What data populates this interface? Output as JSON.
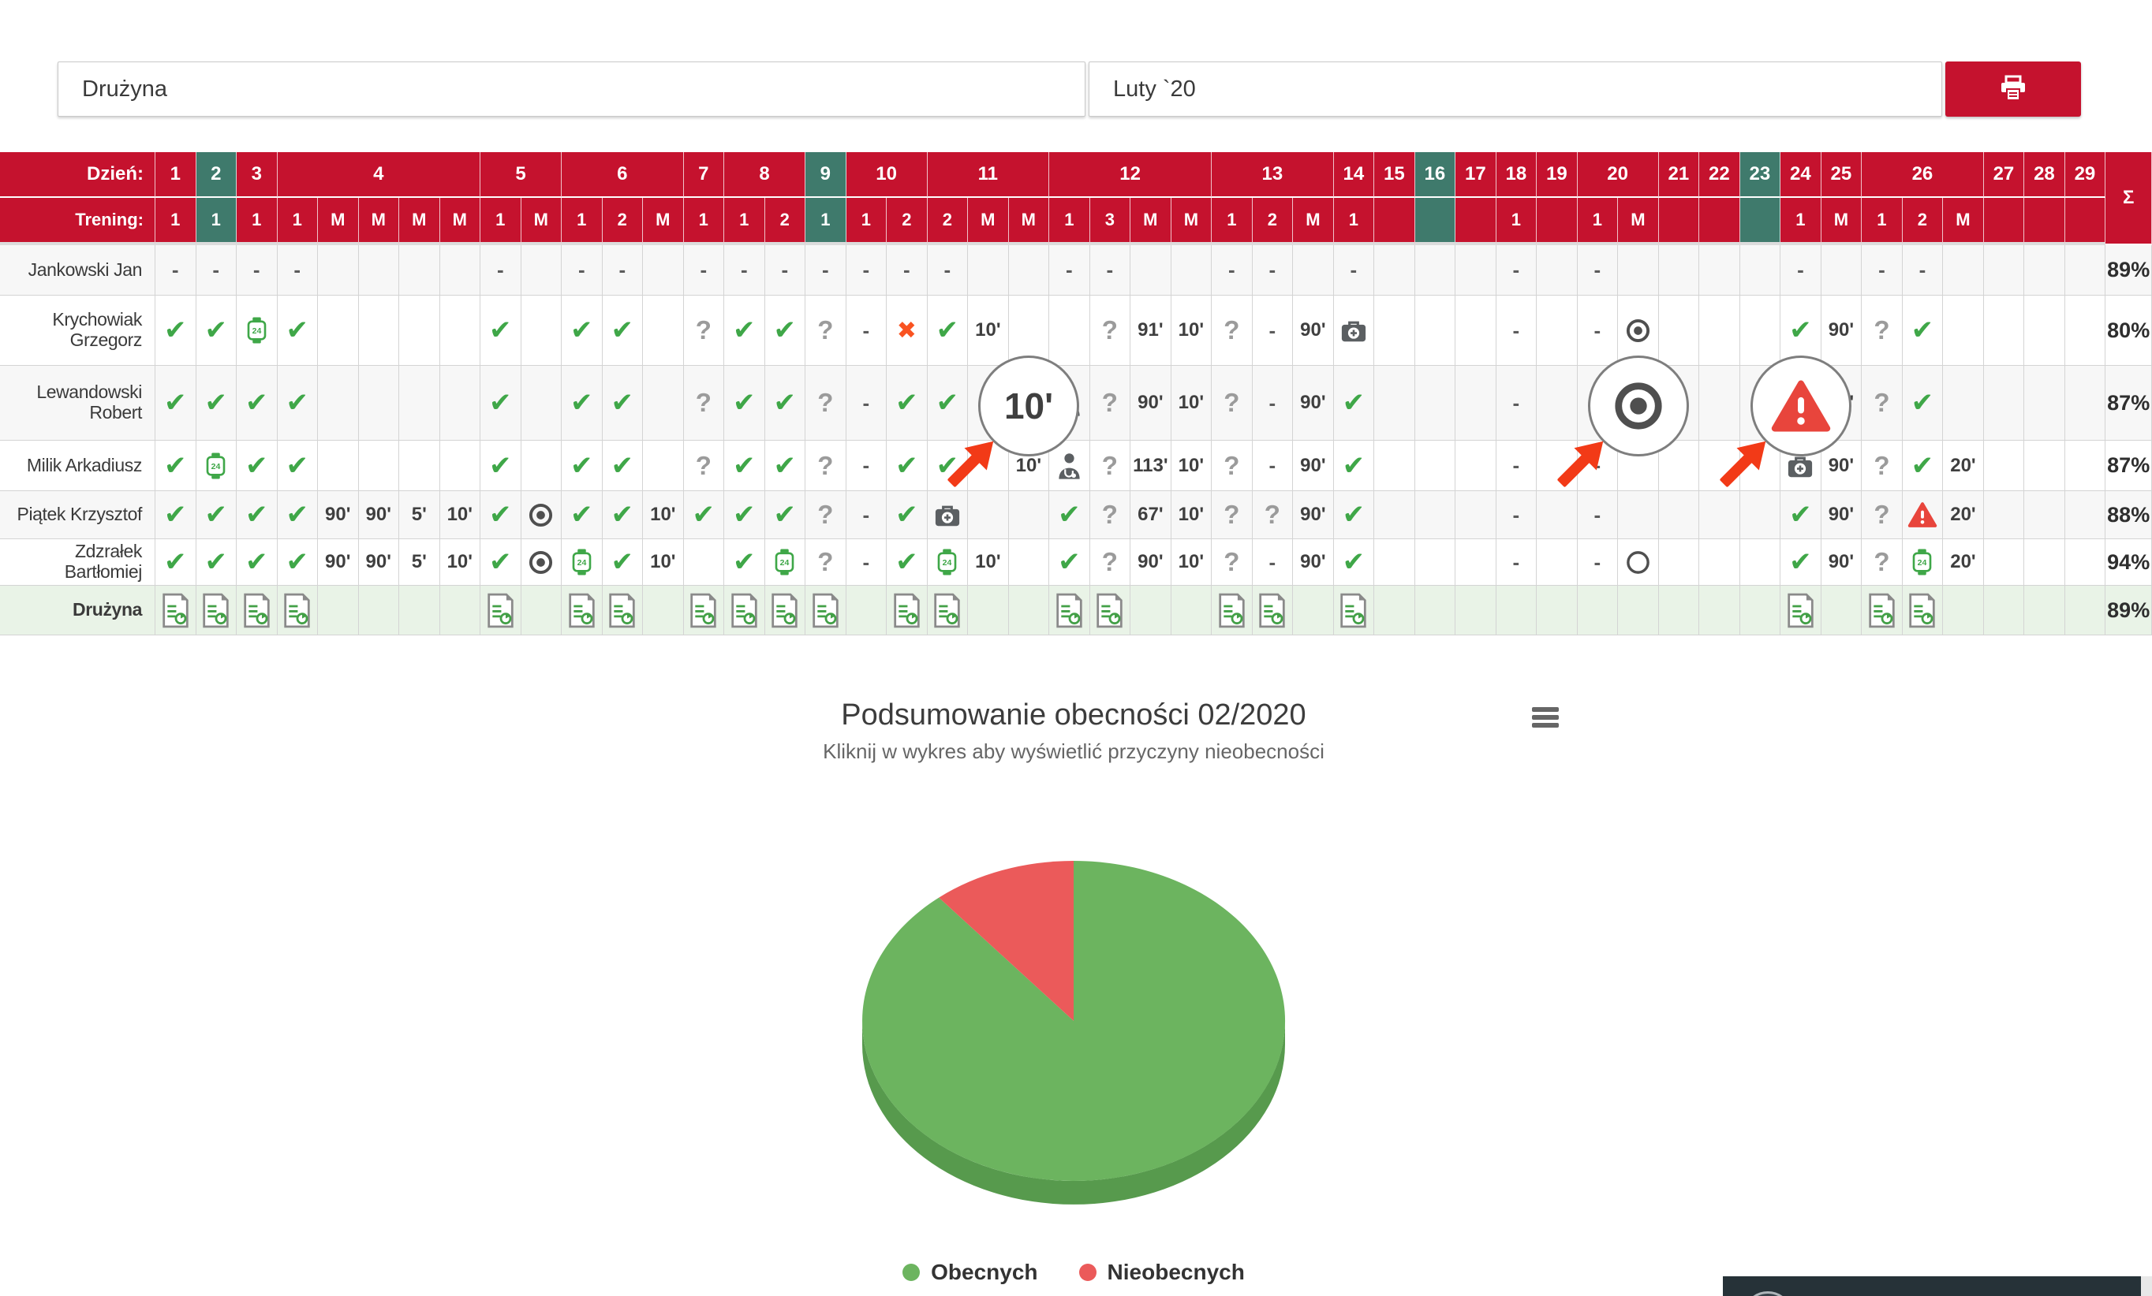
{
  "toolbar": {
    "team_value": "Drużyna",
    "month_value": "Luty `20",
    "print_label": "Drukuj"
  },
  "attendance_table": {
    "day_label": "Dzień:",
    "training_label": "Trening:",
    "sum_symbol": "Σ",
    "days": [
      {
        "n": "1",
        "span": 1,
        "teal": false
      },
      {
        "n": "2",
        "span": 1,
        "teal": true
      },
      {
        "n": "3",
        "span": 1,
        "teal": false
      },
      {
        "n": "4",
        "span": 5,
        "teal": false
      },
      {
        "n": "5",
        "span": 2,
        "teal": false
      },
      {
        "n": "6",
        "span": 3,
        "teal": false
      },
      {
        "n": "7",
        "span": 1,
        "teal": false
      },
      {
        "n": "8",
        "span": 2,
        "teal": false
      },
      {
        "n": "9",
        "span": 1,
        "teal": true
      },
      {
        "n": "10",
        "span": 2,
        "teal": false
      },
      {
        "n": "11",
        "span": 3,
        "teal": false
      },
      {
        "n": "12",
        "span": 4,
        "teal": false
      },
      {
        "n": "13",
        "span": 3,
        "teal": false
      },
      {
        "n": "14",
        "span": 1,
        "teal": false
      },
      {
        "n": "15",
        "span": 1,
        "teal": false
      },
      {
        "n": "16",
        "span": 1,
        "teal": true
      },
      {
        "n": "17",
        "span": 1,
        "teal": false
      },
      {
        "n": "18",
        "span": 1,
        "teal": false
      },
      {
        "n": "19",
        "span": 1,
        "teal": false
      },
      {
        "n": "20",
        "span": 2,
        "teal": false
      },
      {
        "n": "21",
        "span": 1,
        "teal": false
      },
      {
        "n": "22",
        "span": 1,
        "teal": false
      },
      {
        "n": "23",
        "span": 1,
        "teal": true
      },
      {
        "n": "24",
        "span": 1,
        "teal": false
      },
      {
        "n": "25",
        "span": 1,
        "teal": false
      },
      {
        "n": "26",
        "span": 3,
        "teal": false
      },
      {
        "n": "27",
        "span": 1,
        "teal": false
      },
      {
        "n": "28",
        "span": 1,
        "teal": false
      },
      {
        "n": "29",
        "span": 1,
        "teal": false
      }
    ],
    "trainings": [
      "1",
      "1",
      "1",
      "1",
      "M",
      "M",
      "M",
      "M",
      "1",
      "M",
      "1",
      "2",
      "M",
      "1",
      "1",
      "2",
      "1",
      "1",
      "2",
      "2",
      "M",
      "M",
      "1",
      "3",
      "M",
      "M",
      "1",
      "2",
      "M",
      "1",
      "",
      "",
      "",
      "1",
      "",
      "1",
      "M",
      "",
      "",
      "",
      "1",
      "M",
      "1",
      "2",
      "M",
      "",
      "",
      ""
    ],
    "teal_cols": [
      1,
      16,
      31,
      39
    ],
    "players": [
      {
        "name": "Jankowski Jan",
        "sum": "89%",
        "cells": [
          "-",
          "-",
          "-",
          "-",
          "",
          "",
          "",
          "",
          "-",
          "",
          "-",
          "-",
          "",
          "-",
          "-",
          "-",
          "-",
          "-",
          "-",
          "-",
          "",
          "",
          "-",
          "-",
          "",
          "",
          "-",
          "-",
          "",
          "-",
          "",
          "",
          "",
          "-",
          "",
          "-",
          "",
          "",
          "",
          "",
          "-",
          "",
          "-",
          "-",
          "",
          "",
          "",
          ""
        ]
      },
      {
        "name": "Krychowiak Grzegorz",
        "sum": "80%",
        "cells": [
          "c",
          "c",
          "w",
          "c",
          "",
          "",
          "",
          "",
          "c",
          "",
          "c",
          "c",
          "",
          "q",
          "c",
          "c",
          "q",
          "-",
          "x",
          "c",
          "10'",
          "",
          "",
          "q",
          "91'",
          "10'",
          "q",
          "-",
          "90'",
          "b",
          "",
          "",
          "",
          "-",
          "",
          "-",
          "t",
          "",
          "",
          "",
          "c",
          "90'",
          "q",
          "c",
          "",
          "",
          "",
          ""
        ]
      },
      {
        "name": "Lewandowski Robert",
        "sum": "87%",
        "cells": [
          "c",
          "c",
          "c",
          "c",
          "",
          "",
          "",
          "",
          "c",
          "",
          "c",
          "c",
          "",
          "q",
          "c",
          "c",
          "q",
          "-",
          "c",
          "c",
          "",
          "10'",
          "d",
          "q",
          "90'",
          "10'",
          "q",
          "-",
          "90'",
          "c",
          "",
          "",
          "",
          "-",
          "",
          "-",
          "t",
          "",
          "",
          "",
          "!",
          "90'",
          "q",
          "c",
          "",
          "",
          "",
          ""
        ]
      },
      {
        "name": "Milik Arkadiusz",
        "sum": "87%",
        "cells": [
          "c",
          "w",
          "c",
          "c",
          "",
          "",
          "",
          "",
          "c",
          "",
          "c",
          "c",
          "",
          "q",
          "c",
          "c",
          "q",
          "-",
          "c",
          "c",
          "",
          "10'",
          "d",
          "q",
          "113'",
          "10'",
          "q",
          "-",
          "90'",
          "c",
          "",
          "",
          "",
          "-",
          "",
          "-",
          "",
          "",
          "",
          "",
          "b",
          "90'",
          "q",
          "c",
          "20'",
          "",
          "",
          ""
        ]
      },
      {
        "name": "Piątek Krzysztof",
        "sum": "88%",
        "cells": [
          "c",
          "c",
          "c",
          "c",
          "90'",
          "90'",
          "5'",
          "10'",
          "c",
          "t",
          "c",
          "c",
          "10'",
          "c",
          "c",
          "c",
          "q",
          "-",
          "c",
          "b",
          "",
          "",
          "c",
          "q",
          "67'",
          "10'",
          "q",
          "q",
          "90'",
          "c",
          "",
          "",
          "",
          "-",
          "",
          "-",
          "",
          "",
          "",
          "",
          "c",
          "90'",
          "q",
          "!",
          "20'",
          "",
          "",
          ""
        ]
      },
      {
        "name": "Zdzrałek Bartłomiej",
        "sum": "94%",
        "cells": [
          "c",
          "c",
          "c",
          "c",
          "90'",
          "90'",
          "5'",
          "10'",
          "c",
          "t",
          "w",
          "c",
          "10'",
          "",
          "c",
          "w",
          "q",
          "-",
          "c",
          "w",
          "10'",
          "",
          "c",
          "q",
          "90'",
          "10'",
          "q",
          "-",
          "90'",
          "c",
          "",
          "",
          "",
          "-",
          "",
          "-",
          "o",
          "",
          "",
          "",
          "c",
          "90'",
          "q",
          "w",
          "20'",
          "",
          "",
          ""
        ]
      }
    ],
    "team_row": {
      "name": "Drużyna",
      "sum": "89%",
      "cells": [
        "r",
        "r",
        "r",
        "r",
        "",
        "",
        "",
        "",
        "r",
        "",
        "r",
        "r",
        "",
        "r",
        "r",
        "r",
        "r",
        "",
        "r",
        "r",
        "",
        "",
        "r",
        "r",
        "",
        "",
        "r",
        "r",
        "",
        "r",
        "",
        "",
        "",
        "",
        "",
        "",
        "",
        "",
        "",
        "",
        "r",
        "",
        "r",
        "r",
        "",
        "",
        "",
        ""
      ]
    }
  },
  "magnifiers": [
    {
      "type": "min",
      "value": "10'"
    },
    {
      "type": "target"
    },
    {
      "type": "warn"
    }
  ],
  "chart": {
    "title": "Podsumowanie obecności 02/2020",
    "subtitle": "Kliknij w wykres aby wyświetlić przyczyny nieobecności",
    "legend": [
      {
        "label": "Obecnych",
        "color": "#6cb45f"
      },
      {
        "label": "Nieobecnych",
        "color": "#eb5a5a"
      }
    ]
  },
  "chart_data": {
    "type": "pie",
    "title": "Podsumowanie obecności 02/2020",
    "subtitle": "Kliknij w wykres aby wyświetlić przyczyny nieobecności",
    "labels": [
      "Obecnych",
      "Nieobecnych"
    ],
    "values": [
      89,
      11
    ],
    "unit": "%",
    "colors": [
      "#6cb45f",
      "#eb5a5a"
    ],
    "depth_color": "#579a4d",
    "legend_position": "bottom",
    "style": "3d-pie"
  },
  "icons": {
    "check": "obecny-check",
    "watch": "zegarek-24",
    "question": "nieznany",
    "x": "nieobecny-x",
    "target": "cel-target",
    "case": "kontuzja-apteczka",
    "doctor": "lekarz",
    "warn": "ostrzezenie",
    "report": "raport-treningu"
  }
}
